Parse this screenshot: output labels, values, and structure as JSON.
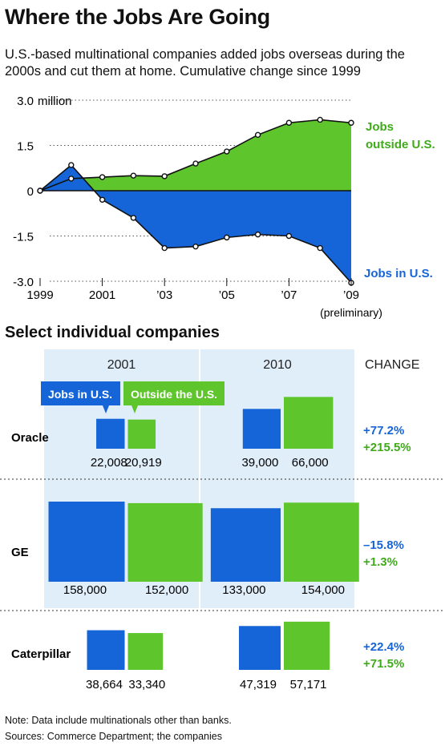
{
  "title": "Where the Jobs Are Going",
  "subtitle": "U.S.-based multinational companies added jobs overseas during the 2000s and cut them at home. Cumulative change since 1999",
  "chart_data": [
    {
      "type": "area",
      "y_unit": "million",
      "ylim": [
        -3.0,
        3.0
      ],
      "yticks": [
        {
          "value": 3.0,
          "label": "3.0"
        },
        {
          "value": 1.5,
          "label": "1.5"
        },
        {
          "value": 0,
          "label": "0"
        },
        {
          "value": -1.5,
          "label": "-1.5"
        },
        {
          "value": -3.0,
          "label": "-3.0"
        }
      ],
      "y_unit_label": "million",
      "x": [
        1999,
        2000,
        2001,
        2002,
        2003,
        2004,
        2005,
        2006,
        2007,
        2008,
        2009
      ],
      "xticks": [
        {
          "value": 1999,
          "label": "1999"
        },
        {
          "value": 2001,
          "label": "2001"
        },
        {
          "value": 2003,
          "label": "’03"
        },
        {
          "value": 2005,
          "label": "’05"
        },
        {
          "value": 2007,
          "label": "’07"
        },
        {
          "value": 2009,
          "label": "’09"
        }
      ],
      "x_note": "(preliminary)",
      "grid": true,
      "series": [
        {
          "name": "Jobs outside U.S.",
          "label_lines": [
            "Jobs",
            "outside U.S."
          ],
          "color": "#5ec62c",
          "values": [
            0,
            0.4,
            0.45,
            0.5,
            0.48,
            0.9,
            1.3,
            1.85,
            2.25,
            2.35,
            2.25
          ]
        },
        {
          "name": "Jobs in U.S.",
          "label_lines": [
            "Jobs in U.S."
          ],
          "color": "#1565d8",
          "values": [
            0,
            0.85,
            -0.3,
            -0.9,
            -1.9,
            -1.85,
            -1.55,
            -1.45,
            -1.5,
            -1.9,
            -3.05
          ]
        }
      ]
    },
    {
      "type": "bar",
      "title": "Select individual companies",
      "columns": [
        "2001",
        "2010"
      ],
      "change_header": "CHANGE",
      "legend": {
        "us": "Jobs in U.S.",
        "outside": "Outside the U.S."
      },
      "colors": {
        "us": "#1565d8",
        "outside": "#5ec62c"
      },
      "companies": [
        {
          "name": "Oracle",
          "y2001": {
            "us": 22008,
            "outside": 20919
          },
          "y2010": {
            "us": 39000,
            "outside": 66000
          },
          "labels2001": {
            "us": "22,008",
            "outside": "20,919"
          },
          "labels2010": {
            "us": "39,000",
            "outside": "66,000"
          },
          "change_us": "+77.2%",
          "change_outside": "+215.5%"
        },
        {
          "name": "GE",
          "y2001": {
            "us": 158000,
            "outside": 152000
          },
          "y2010": {
            "us": 133000,
            "outside": 154000
          },
          "labels2001": {
            "us": "158,000",
            "outside": "152,000"
          },
          "labels2010": {
            "us": "133,000",
            "outside": "154,000"
          },
          "change_us": "–15.8%",
          "change_outside": "+1.3%"
        },
        {
          "name": "Caterpillar",
          "y2001": {
            "us": 38664,
            "outside": 33340
          },
          "y2010": {
            "us": 47319,
            "outside": 57171
          },
          "labels2001": {
            "us": "38,664",
            "outside": "33,340"
          },
          "labels2010": {
            "us": "47,319",
            "outside": "57,171"
          },
          "change_us": "+22.4%",
          "change_outside": "+71.5%"
        }
      ]
    }
  ],
  "note": "Note: Data include multinationals other than banks.",
  "sources": "Sources: Commerce Department; the companies"
}
